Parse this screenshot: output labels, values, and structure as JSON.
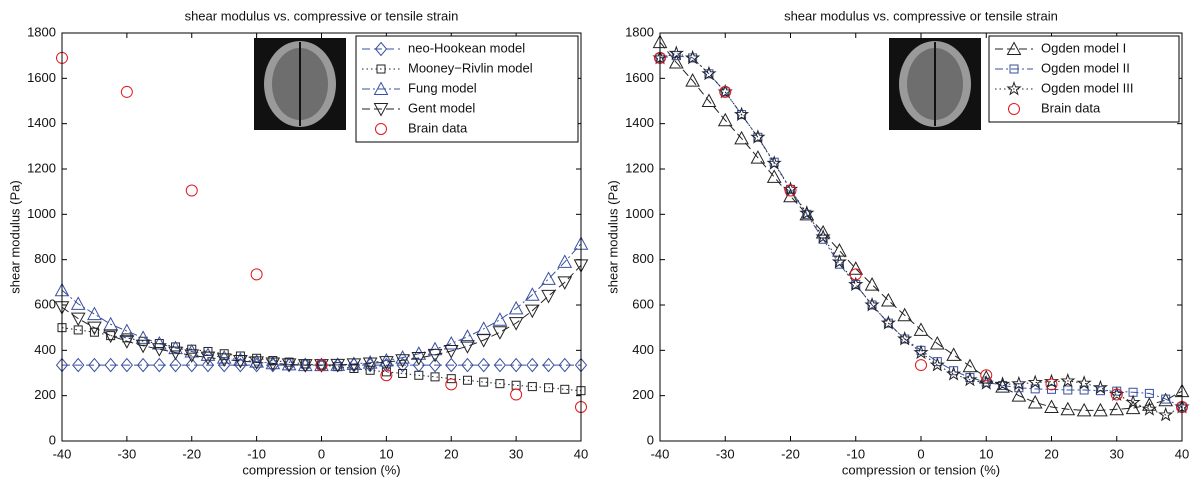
{
  "chart_data": [
    {
      "type": "line",
      "title": "shear modulus vs. compressive or tensile strain",
      "xlabel": "compression or tension (%)",
      "ylabel": "shear modulus (Pa)",
      "xlim": [
        -40,
        40
      ],
      "xticks": [
        -40,
        -30,
        -20,
        -10,
        0,
        10,
        20,
        30,
        40
      ],
      "ylim": [
        0,
        1800
      ],
      "yticks": [
        0,
        200,
        400,
        600,
        800,
        1000,
        1200,
        1400,
        1600,
        1800
      ],
      "legend": "upper right",
      "x": [
        -40,
        -37.5,
        -35,
        -32.5,
        -30,
        -27.5,
        -25,
        -22.5,
        -20,
        -17.5,
        -15,
        -12.5,
        -10,
        -7.5,
        -5,
        -2.5,
        0,
        2.5,
        5,
        7.5,
        10,
        12.5,
        15,
        17.5,
        20,
        22.5,
        25,
        27.5,
        30,
        32.5,
        35,
        37.5,
        40
      ],
      "series": [
        {
          "name": "neo-Hookean model",
          "color": "#3a4fa0",
          "marker": "diamond",
          "linestyle": "dashed",
          "values": [
            335,
            335,
            335,
            335,
            335,
            335,
            335,
            335,
            335,
            335,
            335,
            335,
            335,
            335,
            335,
            335,
            335,
            335,
            335,
            335,
            335,
            335,
            335,
            335,
            335,
            335,
            335,
            335,
            335,
            335,
            335,
            335,
            335
          ]
        },
        {
          "name": "Mooney−Rivlin model",
          "color": "#222222",
          "marker": "square",
          "linestyle": "dotted",
          "values": [
            500,
            490,
            480,
            465,
            455,
            440,
            430,
            415,
            405,
            395,
            385,
            375,
            365,
            355,
            348,
            340,
            335,
            328,
            320,
            312,
            305,
            298,
            290,
            283,
            275,
            268,
            260,
            253,
            246,
            240,
            235,
            228,
            222
          ]
        },
        {
          "name": "Fung model",
          "color": "#3a4fa0",
          "marker": "triangle-up",
          "linestyle": "dashdot",
          "values": [
            665,
            605,
            560,
            515,
            485,
            455,
            430,
            410,
            395,
            380,
            368,
            358,
            350,
            343,
            338,
            335,
            335,
            336,
            340,
            346,
            355,
            368,
            385,
            405,
            430,
            460,
            495,
            535,
            585,
            645,
            715,
            790,
            870
          ]
        },
        {
          "name": "Gent model",
          "color": "#222222",
          "marker": "triangle-down",
          "linestyle": "dashed",
          "values": [
            590,
            540,
            500,
            465,
            440,
            420,
            405,
            390,
            378,
            368,
            360,
            353,
            347,
            342,
            338,
            335,
            335,
            336,
            338,
            342,
            348,
            356,
            366,
            380,
            397,
            418,
            445,
            480,
            520,
            575,
            640,
            700,
            775
          ]
        },
        {
          "name": "Brain data",
          "color": "#e0161b",
          "marker": "circle",
          "linestyle": "none",
          "x": [
            -40,
            -30,
            -20,
            -10,
            0,
            10,
            20,
            30,
            40
          ],
          "values": [
            1690,
            1540,
            1105,
            735,
            335,
            290,
            250,
            205,
            150
          ]
        }
      ]
    },
    {
      "type": "line",
      "title": "shear modulus vs. compressive or tensile strain",
      "xlabel": "compression or tension (%)",
      "ylabel": "shear modulus (Pa)",
      "xlim": [
        -40,
        40
      ],
      "xticks": [
        -40,
        -30,
        -20,
        -10,
        0,
        10,
        20,
        30,
        40
      ],
      "ylim": [
        0,
        1800
      ],
      "yticks": [
        0,
        200,
        400,
        600,
        800,
        1000,
        1200,
        1400,
        1600,
        1800
      ],
      "legend": "upper right",
      "x": [
        -40,
        -37.5,
        -35,
        -32.5,
        -30,
        -27.5,
        -25,
        -22.5,
        -20,
        -17.5,
        -15,
        -12.5,
        -10,
        -7.5,
        -5,
        -2.5,
        0,
        2.5,
        5,
        7.5,
        10,
        12.5,
        15,
        17.5,
        20,
        22.5,
        25,
        27.5,
        30,
        32.5,
        35,
        37.5,
        40
      ],
      "series": [
        {
          "name": "Ogden model I",
          "color": "#222222",
          "marker": "triangle-up",
          "linestyle": "dashed",
          "values": [
            1760,
            1670,
            1590,
            1500,
            1415,
            1335,
            1250,
            1165,
            1080,
            1000,
            920,
            840,
            760,
            690,
            620,
            555,
            490,
            430,
            380,
            330,
            280,
            240,
            200,
            170,
            150,
            140,
            135,
            135,
            140,
            145,
            160,
            180,
            220
          ]
        },
        {
          "name": "Ogden model II",
          "color": "#3a4fa0",
          "marker": "square",
          "linestyle": "dashdot",
          "values": [
            1690,
            1700,
            1690,
            1620,
            1540,
            1440,
            1340,
            1230,
            1110,
            1000,
            890,
            780,
            690,
            600,
            520,
            450,
            400,
            350,
            310,
            280,
            260,
            245,
            235,
            230,
            228,
            225,
            225,
            222,
            220,
            215,
            210,
            185,
            150
          ]
        },
        {
          "name": "Ogden model III",
          "color": "#222222",
          "marker": "star",
          "linestyle": "dotted",
          "values": [
            1690,
            1710,
            1690,
            1620,
            1540,
            1440,
            1340,
            1225,
            1110,
            1005,
            900,
            790,
            690,
            600,
            520,
            450,
            390,
            335,
            295,
            270,
            255,
            250,
            252,
            258,
            262,
            265,
            255,
            235,
            205,
            170,
            140,
            115,
            150
          ]
        },
        {
          "name": "Brain data",
          "color": "#e0161b",
          "marker": "circle",
          "linestyle": "none",
          "x": [
            -40,
            -30,
            -20,
            -10,
            0,
            10,
            20,
            30,
            40
          ],
          "values": [
            1690,
            1540,
            1105,
            735,
            335,
            290,
            250,
            205,
            150
          ]
        }
      ]
    }
  ]
}
